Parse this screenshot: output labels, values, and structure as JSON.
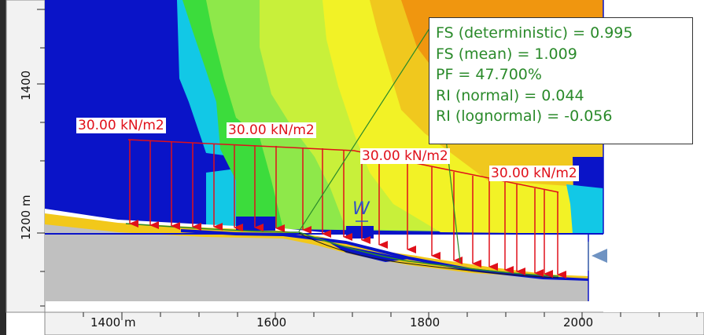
{
  "canvas": {
    "load_label_1": "30.00 kN/m2",
    "load_label_2": "30.00 kN/m2",
    "load_label_3": "30.00 kN/m2",
    "load_label_4": "30.00 kN/m2",
    "water_marker": "W"
  },
  "results": {
    "fs_deterministic": "FS (deterministic) = 0.995",
    "fs_mean": "FS (mean) = 1.009",
    "pf": "PF = 47.700%",
    "ri_normal": "RI (normal) = 0.044",
    "ri_lognormal": "RI (lognormal) = -0.056"
  },
  "axes": {
    "x_ticks": [
      "1400 m",
      "1600",
      "1800",
      "2000"
    ],
    "y_ticks": [
      "1400",
      "1200 m"
    ]
  },
  "colors": {
    "load_red": "#e0101a",
    "result_green": "#2a8a2a",
    "bedrock_gray": "#c0c0c0",
    "background_blue": "#0a14c8"
  }
}
